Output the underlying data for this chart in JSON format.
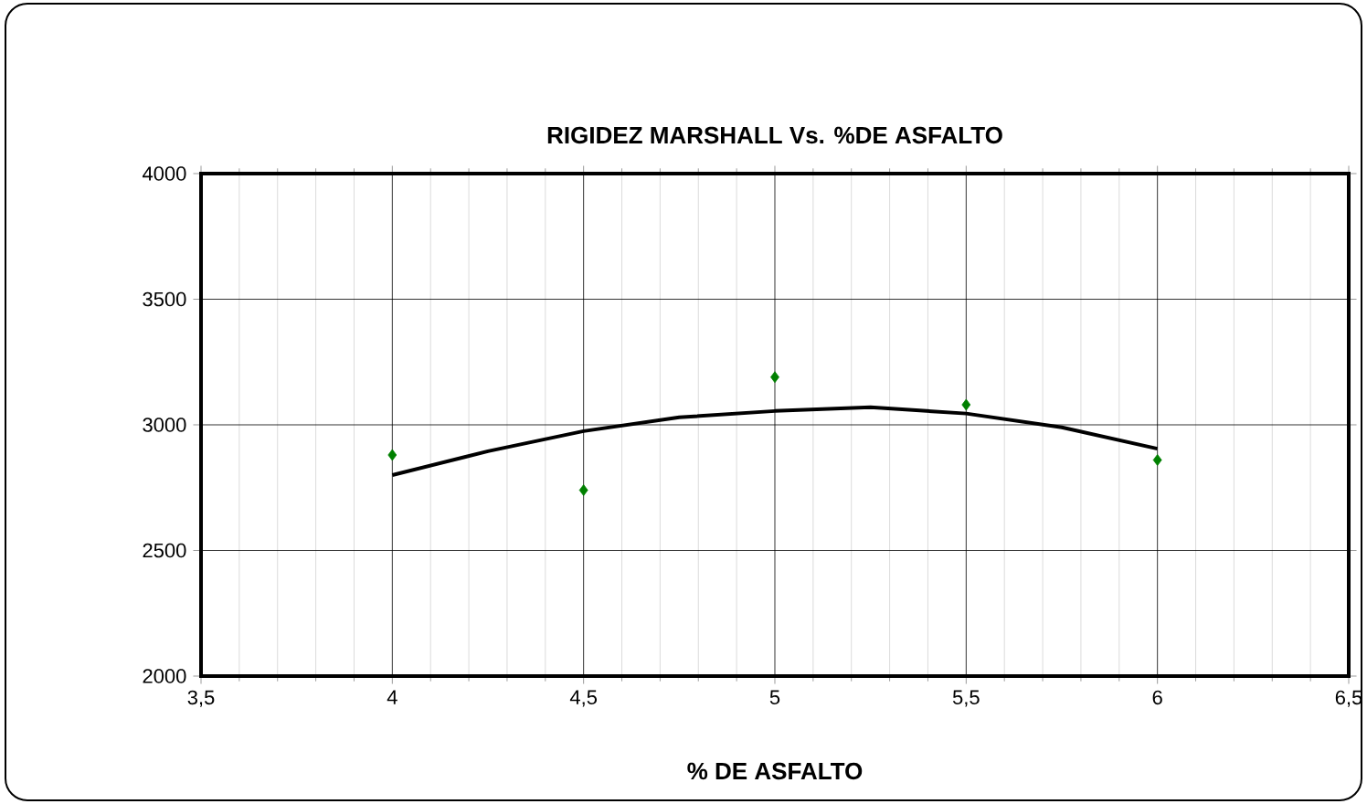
{
  "chart_data": {
    "type": "scatter",
    "title": "RIGIDEZ MARSHALL Vs. %DE ASFALTO",
    "xlabel": "% DE ASFALTO",
    "xlim": [
      3.5,
      6.5
    ],
    "xticks": [
      {
        "value": 3.5,
        "label": "3,5"
      },
      4,
      {
        "value": 4.5,
        "label": "4,5"
      },
      5,
      {
        "value": 5.5,
        "label": "5,5"
      },
      6,
      {
        "value": 6.5,
        "label": "6,5"
      }
    ],
    "ylim": [
      2000,
      4000
    ],
    "yticks": [
      2000,
      2500,
      3000,
      3500,
      4000
    ],
    "grid": true,
    "series": [
      {
        "color": "#008000",
        "marker": "diamond",
        "x": [
          4,
          4.5,
          5,
          5.5,
          6
        ],
        "values": [
          2880,
          2740,
          3190,
          3080,
          2860
        ]
      },
      {
        "type": "line",
        "color": "#000000",
        "marker": "none",
        "line_style": "solid",
        "x": [
          4,
          4.25,
          4.5,
          4.75,
          5,
          5.25,
          5.5,
          5.75,
          6
        ],
        "values": [
          2800,
          2895,
          2975,
          3030,
          3055,
          3070,
          3045,
          2990,
          2905
        ]
      }
    ]
  }
}
